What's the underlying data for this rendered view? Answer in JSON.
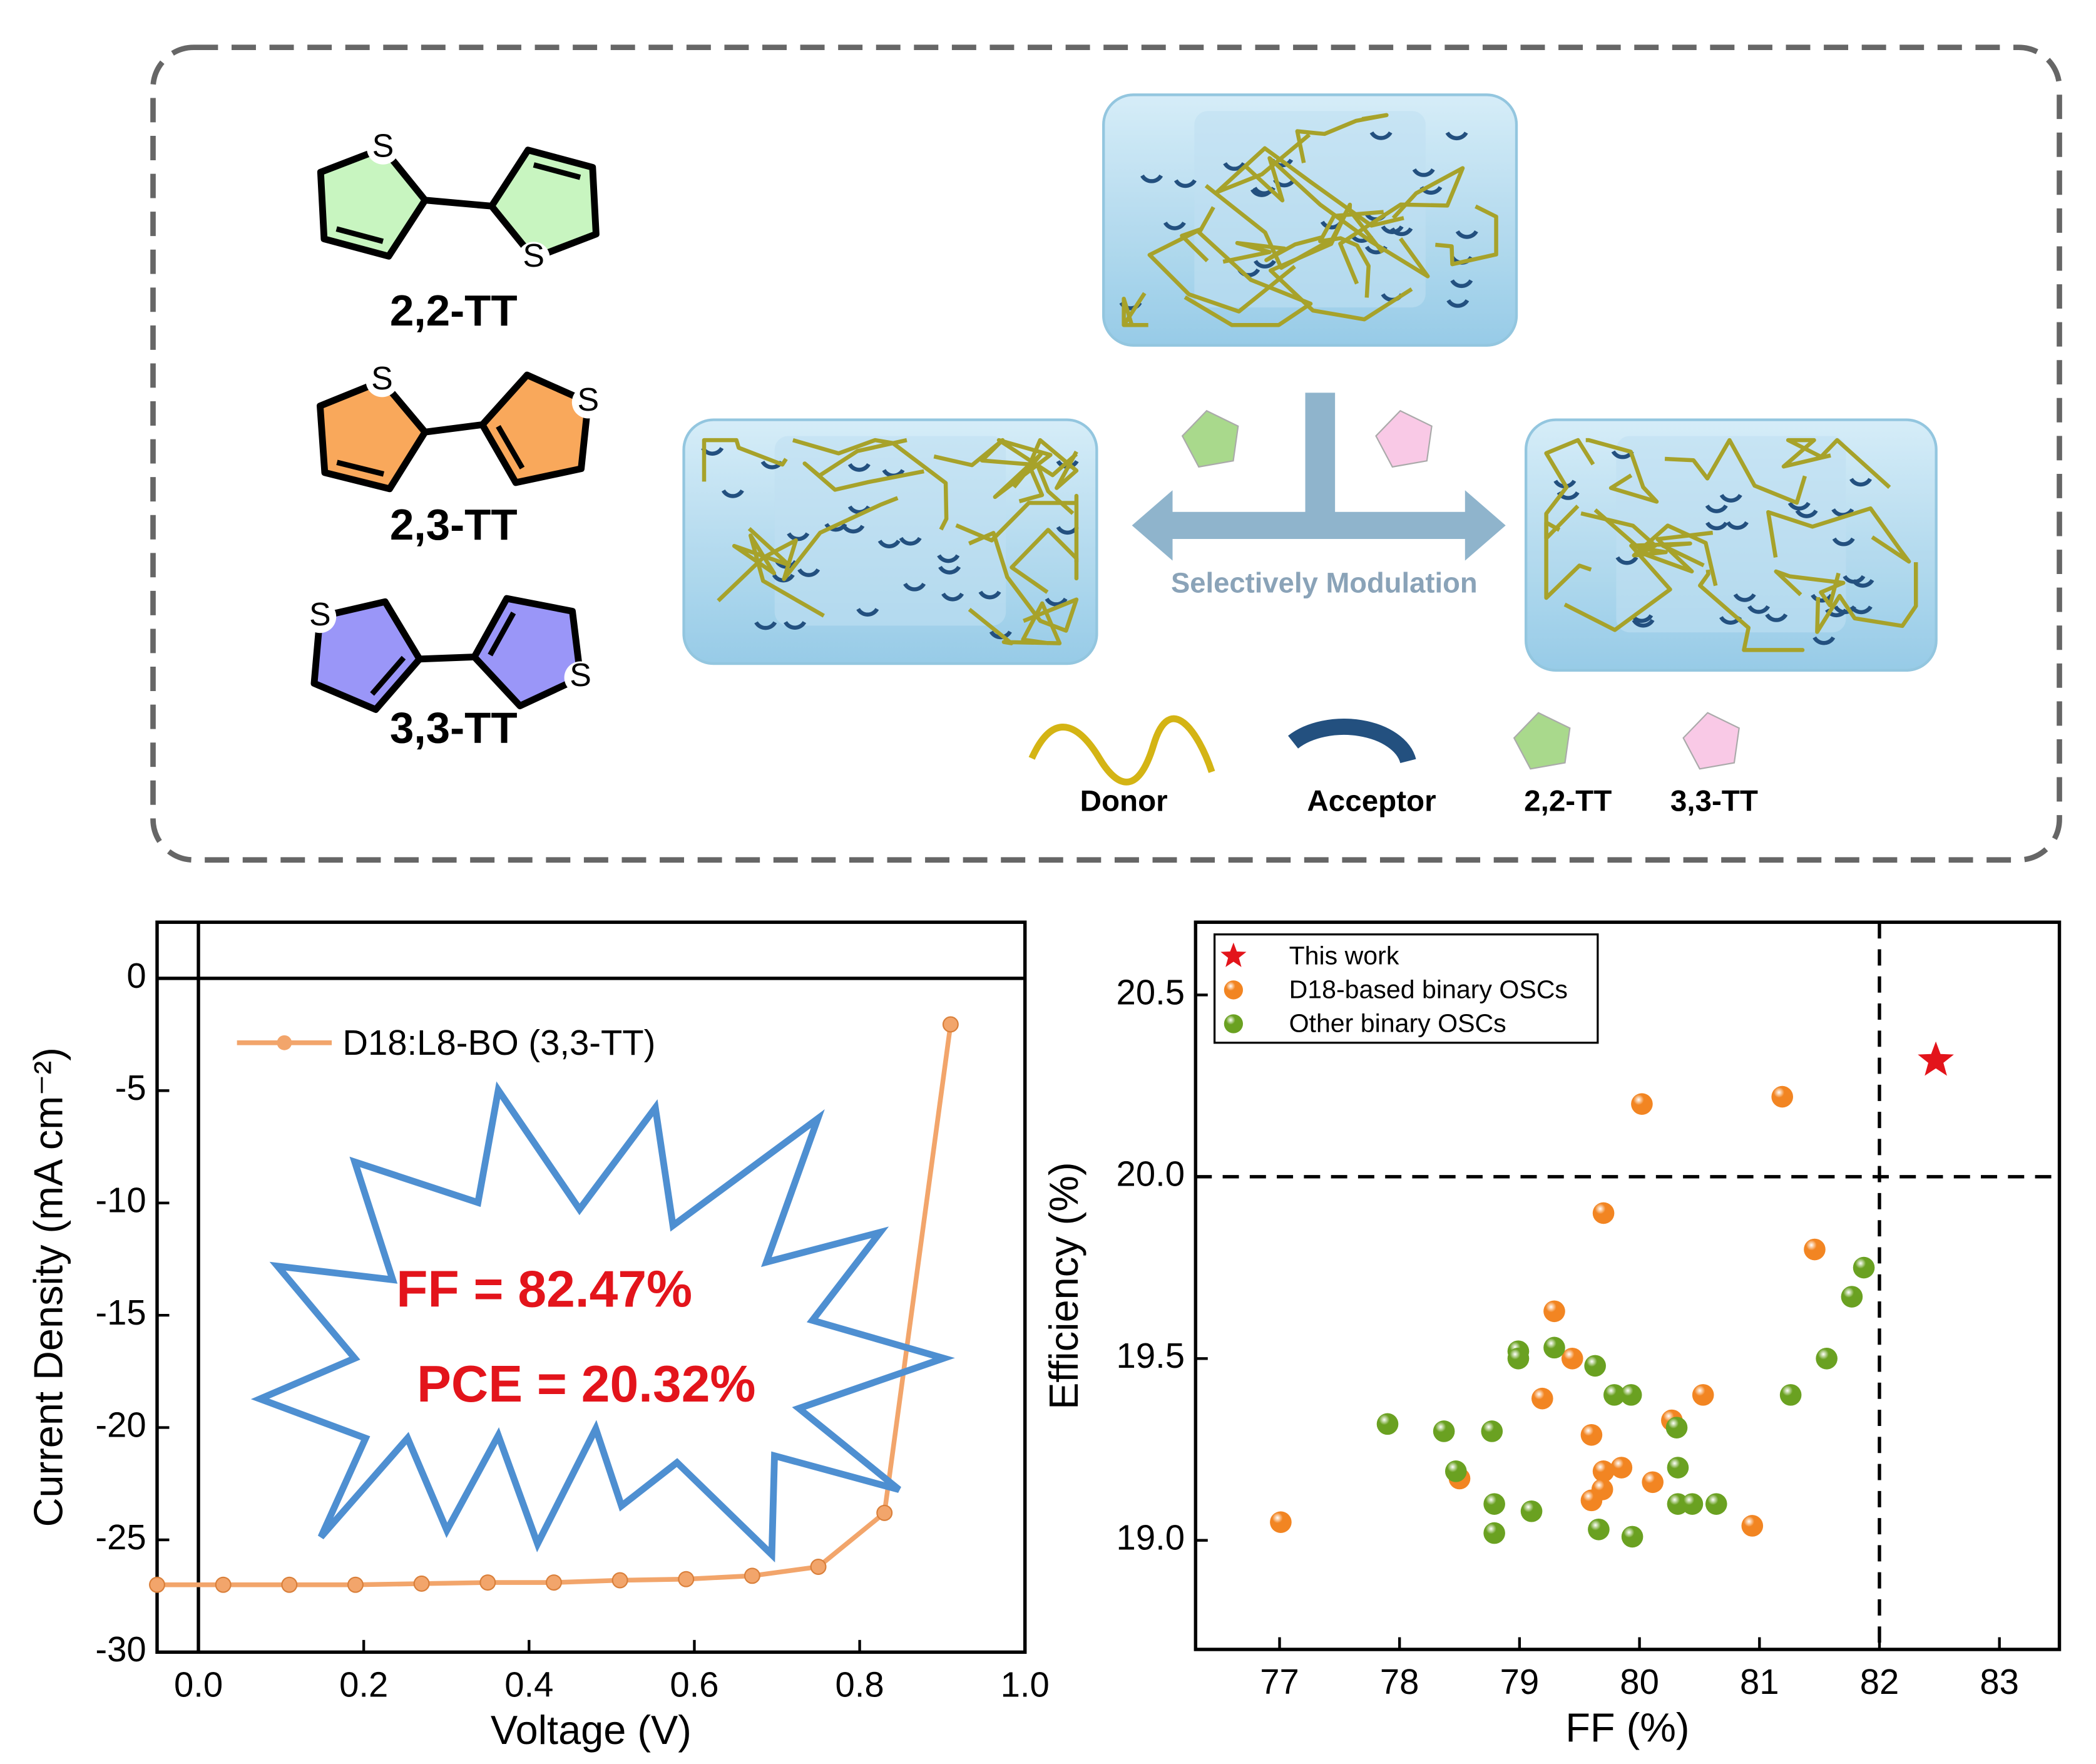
{
  "diagram": {
    "molecules": [
      "2,2-TT",
      "2,3-TT",
      "3,3-TT"
    ],
    "atom": "S",
    "arrow_label": "Selectively Modulation",
    "legend": [
      "Donor",
      "Acceptor",
      "2,2-TT",
      "3,3-TT"
    ]
  },
  "chart_data": [
    {
      "type": "line",
      "x_label": "Voltage (V)",
      "y_label": "Current Density (mA cm⁻²)",
      "xlim": [
        -0.05,
        1.0
      ],
      "xticks": [
        {
          "value": 0,
          "label": "0.0"
        },
        0.2,
        0.4,
        0.6,
        0.8,
        {
          "value": 1,
          "label": "1.0"
        }
      ],
      "ylim": [
        -30,
        2.5
      ],
      "yticks": [
        -30,
        -25,
        -20,
        -15,
        -10,
        -5,
        0
      ],
      "x": [
        -0.05,
        0.03,
        0.11,
        0.19,
        0.27,
        0.35,
        0.43,
        0.51,
        0.59,
        0.67,
        0.75,
        0.83,
        0.91
      ],
      "series": [
        {
          "name": "D18:L8-BO (3,3-TT)",
          "color": "#f2a56b",
          "values": [
            -27.0,
            -27.0,
            -27.0,
            -27.0,
            -26.95,
            -26.9,
            -26.9,
            -26.8,
            -26.75,
            -26.6,
            -26.2,
            -23.8,
            -2.05
          ]
        }
      ],
      "annotations": [
        "FF = 82.47%",
        "PCE = 20.32%"
      ],
      "zero_lines": true
    },
    {
      "type": "scatter",
      "x_label": "FF (%)",
      "y_label": "Efficiency (%)",
      "xlim": [
        76.3,
        83.5
      ],
      "xticks": [
        77,
        78,
        79,
        80,
        81,
        82,
        83
      ],
      "ylim": [
        18.7,
        20.7
      ],
      "yticks": [
        {
          "value": 19,
          "label": "19.0"
        },
        19.5,
        {
          "value": 20,
          "label": "20.0"
        },
        20.5
      ],
      "reference_lines": {
        "x": 82,
        "y": 20
      },
      "legend": "upper left",
      "series": [
        {
          "name": "This work",
          "color": "#e3141b",
          "marker": "star",
          "x": [
            82.47
          ],
          "values": [
            20.32
          ]
        },
        {
          "name": "D18-based binary OSCs",
          "color": "#f28522",
          "marker": "circle",
          "x": [
            77.01,
            80.02,
            81.19,
            79.7,
            81.46,
            79.29,
            79.44,
            79.19,
            79.6,
            80.53,
            80.27,
            79.85,
            79.7,
            79.69,
            79.6,
            80.11,
            78.5,
            80.94
          ],
          "values": [
            19.05,
            20.2,
            20.22,
            19.9,
            19.8,
            19.63,
            19.5,
            19.39,
            19.29,
            19.4,
            19.33,
            19.2,
            19.19,
            19.14,
            19.11,
            19.16,
            19.17,
            19.04
          ]
        },
        {
          "name": "Other binary OSCs",
          "color": "#6aa121",
          "marker": "circle",
          "x": [
            77.9,
            78.37,
            78.77,
            78.47,
            78.79,
            78.79,
            79.1,
            78.99,
            78.99,
            79.29,
            79.63,
            79.79,
            79.93,
            79.66,
            79.94,
            80.31,
            80.32,
            80.32,
            80.44,
            80.64,
            81.26,
            81.56,
            81.77,
            81.87
          ],
          "values": [
            19.32,
            19.3,
            19.3,
            19.19,
            19.1,
            19.02,
            19.08,
            19.52,
            19.5,
            19.53,
            19.48,
            19.4,
            19.4,
            19.03,
            19.01,
            19.31,
            19.2,
            19.1,
            19.1,
            19.1,
            19.4,
            19.5,
            19.67,
            19.75
          ]
        }
      ]
    }
  ]
}
